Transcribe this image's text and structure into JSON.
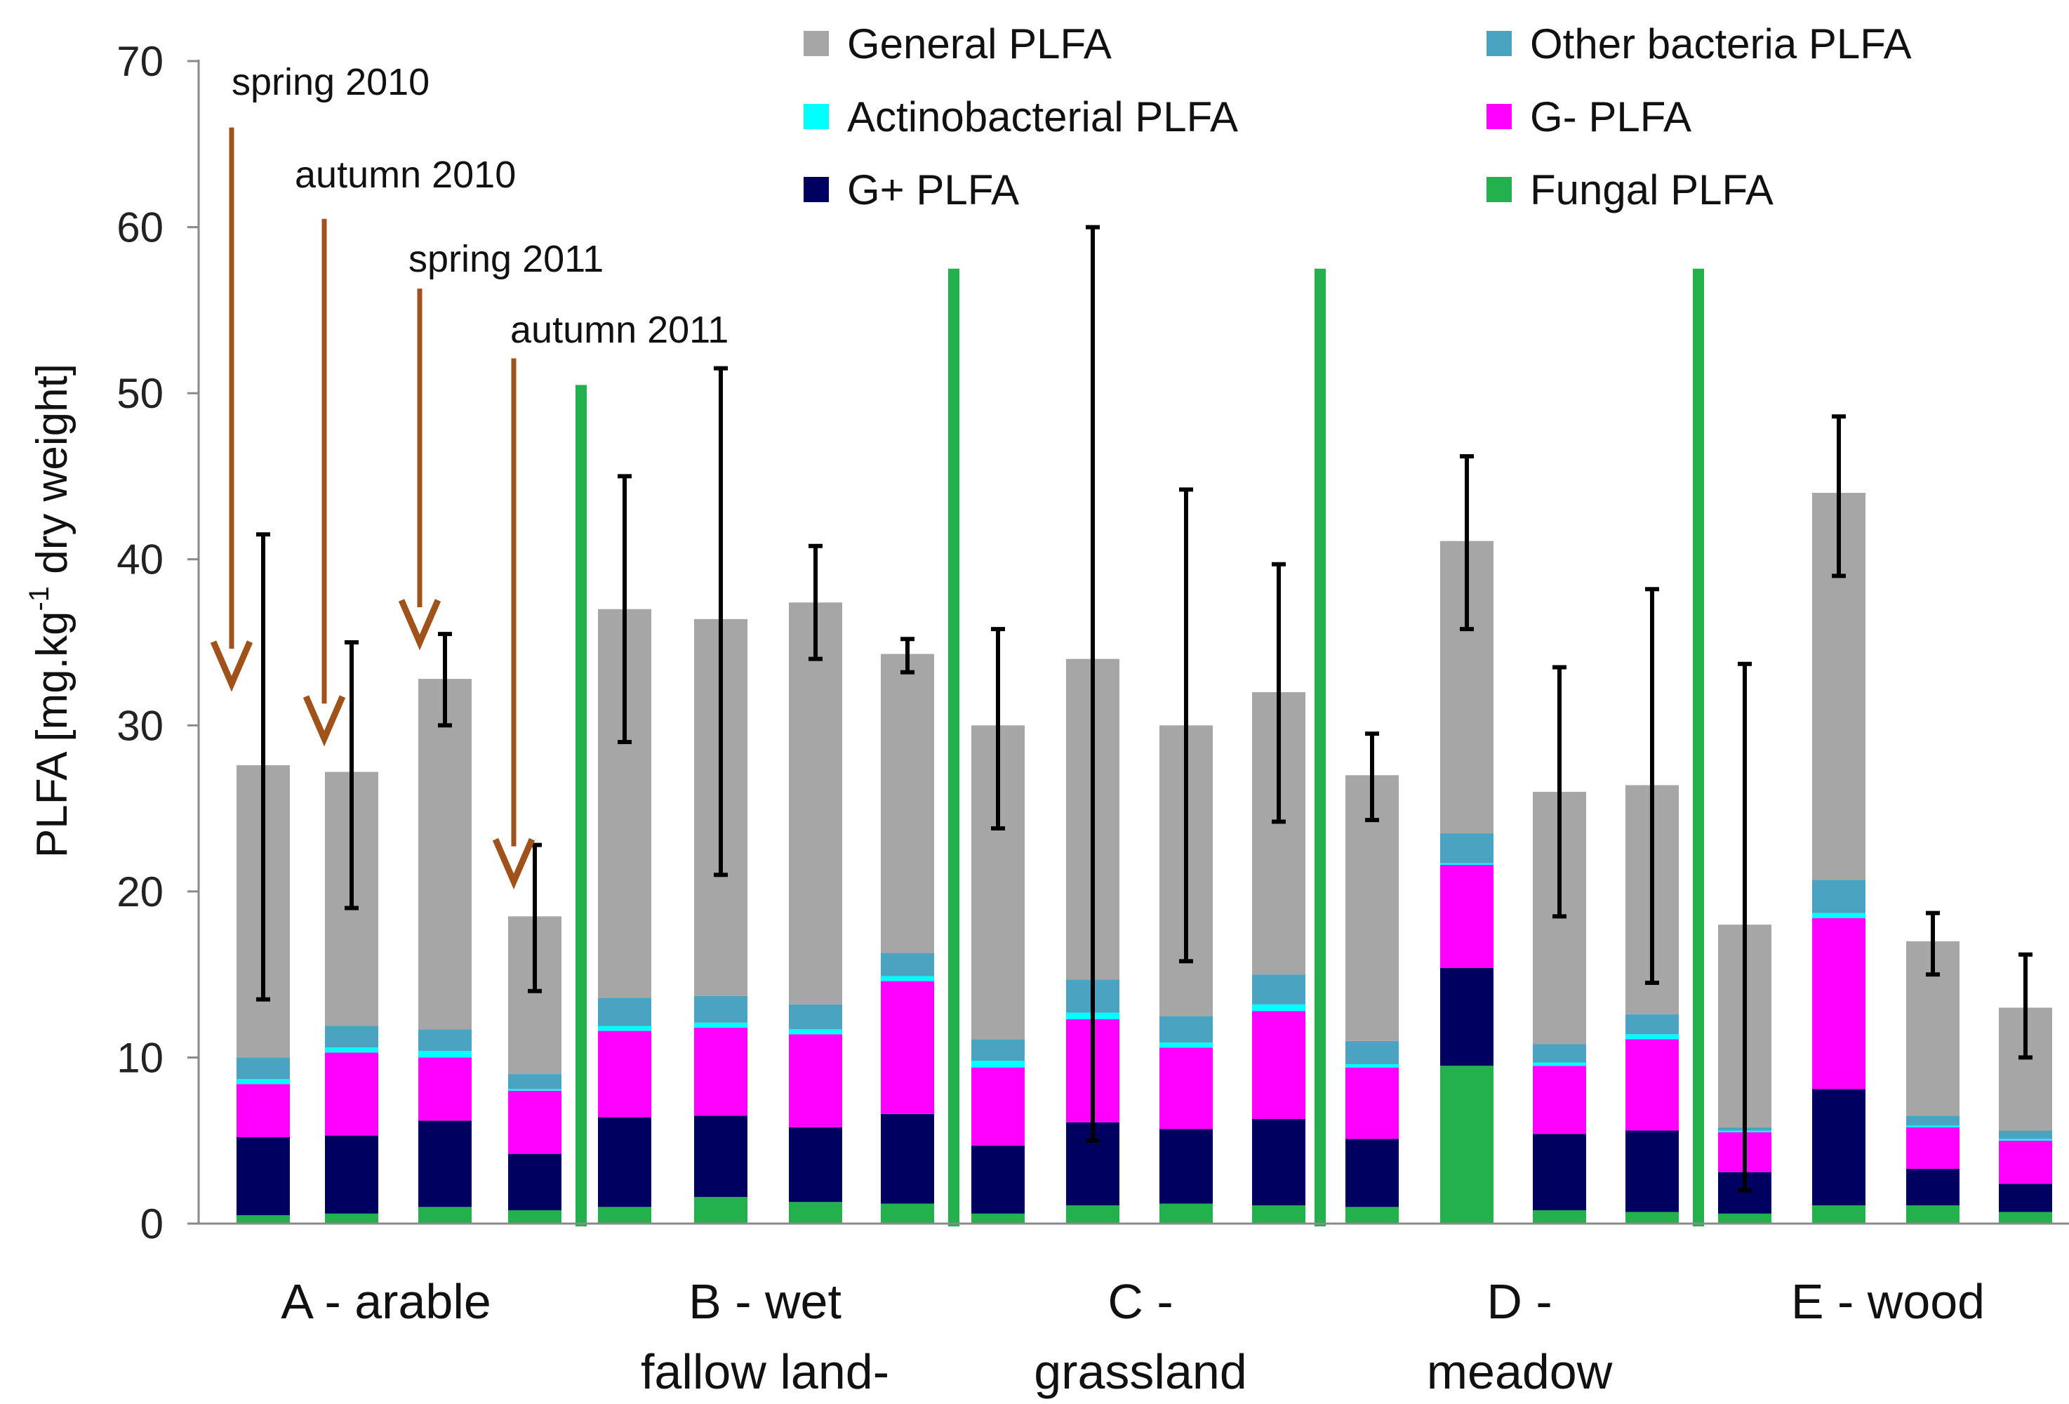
{
  "chart_data": {
    "type": "bar",
    "stacked": true,
    "ylabel_main": "PLFA [mg.kg",
    "ylabel_sup": "-1",
    "ylabel_rest": " dry weight]",
    "ylim": [
      0,
      70
    ],
    "yticks": [
      0,
      10,
      20,
      30,
      40,
      50,
      60,
      70
    ],
    "legend_position": "top-right",
    "groups": [
      {
        "label_lines": [
          "A - arable"
        ],
        "bars": [
          0,
          1,
          2,
          3
        ]
      },
      {
        "label_lines": [
          "B - wet",
          "fallow land-"
        ],
        "bars": [
          4,
          5,
          6,
          7
        ]
      },
      {
        "label_lines": [
          "C -",
          "grassland"
        ],
        "bars": [
          8,
          9,
          10,
          11
        ]
      },
      {
        "label_lines": [
          "D -",
          "meadow"
        ],
        "bars": [
          12,
          13,
          14,
          15
        ]
      },
      {
        "label_lines": [
          "E - wood"
        ],
        "bars": [
          16,
          17,
          18,
          19
        ]
      }
    ],
    "series": [
      {
        "name": "Fungal PLFA",
        "color": "#22b14c",
        "values": [
          0.5,
          0.6,
          1.0,
          0.8,
          1.0,
          1.6,
          1.3,
          1.2,
          0.6,
          1.1,
          1.2,
          1.1,
          1.0,
          9.5,
          0.8,
          0.7,
          0.6,
          1.1,
          1.1,
          0.7
        ]
      },
      {
        "name": "G+ PLFA",
        "color": "#000060",
        "values": [
          4.7,
          4.7,
          5.2,
          3.4,
          5.4,
          4.9,
          4.5,
          5.4,
          4.1,
          5.0,
          4.5,
          5.2,
          4.1,
          5.9,
          4.6,
          4.9,
          2.5,
          7.0,
          2.2,
          1.7
        ]
      },
      {
        "name": "G- PLFA",
        "color": "#ff00ff",
        "values": [
          3.2,
          5.0,
          3.8,
          3.8,
          5.2,
          5.3,
          5.6,
          8.0,
          4.7,
          6.2,
          4.9,
          6.5,
          4.3,
          6.2,
          4.1,
          5.5,
          2.4,
          10.3,
          2.5,
          2.6
        ]
      },
      {
        "name": "Actinobacterial PLFA",
        "color": "#00ffff",
        "values": [
          0.3,
          0.3,
          0.4,
          0.1,
          0.3,
          0.3,
          0.3,
          0.3,
          0.4,
          0.4,
          0.3,
          0.4,
          0.2,
          0.1,
          0.2,
          0.3,
          0.1,
          0.3,
          0.1,
          0.1
        ]
      },
      {
        "name": "Other bacteria PLFA",
        "color": "#4aa3c0",
        "values": [
          1.3,
          1.3,
          1.3,
          0.9,
          1.7,
          1.6,
          1.5,
          1.4,
          1.3,
          2.0,
          1.6,
          1.8,
          1.4,
          1.8,
          1.1,
          1.2,
          0.2,
          2.0,
          0.6,
          0.5
        ]
      },
      {
        "name": "General PLFA",
        "color": "#a6a6a6",
        "values": [
          17.6,
          15.3,
          21.1,
          9.5,
          23.4,
          22.7,
          24.2,
          18.0,
          18.9,
          19.3,
          17.5,
          17.0,
          16.0,
          17.6,
          15.2,
          13.8,
          12.2,
          23.3,
          10.5,
          7.4
        ]
      }
    ],
    "error_bars": [
      [
        13.5,
        41.5
      ],
      [
        19.0,
        35.0
      ],
      [
        30.0,
        35.5
      ],
      [
        14.0,
        22.8
      ],
      [
        29.0,
        45.0
      ],
      [
        21.0,
        51.5
      ],
      [
        34.0,
        40.8
      ],
      [
        33.2,
        35.2
      ],
      [
        23.8,
        35.8
      ],
      [
        5.0,
        60.0
      ],
      [
        15.8,
        44.2
      ],
      [
        24.2,
        39.7
      ],
      [
        24.3,
        29.5
      ],
      [
        35.8,
        46.2
      ],
      [
        18.5,
        33.5
      ],
      [
        14.5,
        38.2
      ],
      [
        2.0,
        33.7
      ],
      [
        39.0,
        48.6
      ],
      [
        15.0,
        18.7
      ],
      [
        10.0,
        16.2
      ]
    ],
    "legend": [
      {
        "name": "General PLFA",
        "color": "#a6a6a6"
      },
      {
        "name": "Other bacteria PLFA",
        "color": "#4aa3c0"
      },
      {
        "name": "Actinobacterial PLFA",
        "color": "#00ffff"
      },
      {
        "name": "G- PLFA",
        "color": "#ff00ff"
      },
      {
        "name": "G+ PLFA",
        "color": "#000060"
      },
      {
        "name": "Fungal PLFA",
        "color": "#22b14c"
      }
    ],
    "annotations": [
      {
        "label": "spring 2010",
        "bar_index": 0,
        "arrow_top": 66,
        "arrow_tip": 32.5
      },
      {
        "label": "autumn 2010",
        "bar_index": 1,
        "arrow_top": 60.5,
        "arrow_tip": 29.2
      },
      {
        "label": "spring 2011",
        "bar_index": 2,
        "arrow_top": 56.3,
        "arrow_tip": 35.0
      },
      {
        "label": "autumn 2011",
        "bar_index": 3,
        "arrow_top": 52.1,
        "arrow_tip": 20.6
      }
    ],
    "separator_color": "#22b14c",
    "separator_tops": [
      50.5,
      57.5,
      57.5,
      57.5
    ],
    "arrow_color": "#a0521a"
  }
}
